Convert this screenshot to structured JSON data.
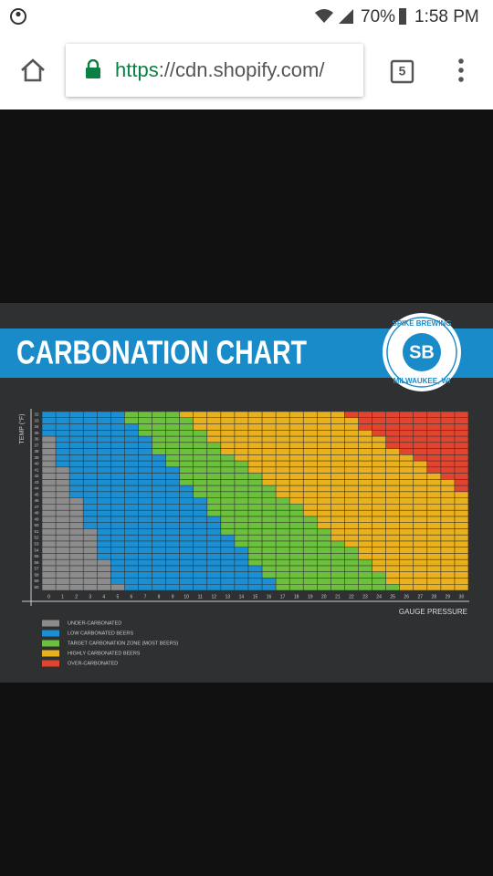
{
  "status_bar": {
    "battery": "70%",
    "time": "1:58 PM"
  },
  "browser": {
    "url_scheme": "https",
    "url_rest": "://cdn.shopify.com/",
    "tab_count": "5"
  },
  "chart_data": {
    "type": "heatmap",
    "title": "CARBONATION CHART",
    "logo": {
      "name": "SPIKE BREWING",
      "initials": "SB",
      "location": "MILWAUKEE, WI"
    },
    "y_label": "TEMP (°F)",
    "x_label": "GAUGE PRESSURE",
    "rows": [
      32,
      33,
      34,
      35,
      36,
      37,
      38,
      39,
      40,
      41,
      42,
      43,
      44,
      45,
      46,
      47,
      48,
      49,
      50,
      51,
      52,
      53,
      54,
      55,
      56,
      57,
      58,
      59,
      60
    ],
    "columns": [
      0,
      1,
      2,
      3,
      4,
      5,
      6,
      7,
      8,
      9,
      10,
      11,
      12,
      13,
      14,
      15,
      16,
      17,
      18,
      19,
      20,
      21,
      22,
      23,
      24,
      25,
      26,
      27,
      28,
      29,
      30
    ],
    "zones": [
      {
        "name": "UNDER-CARBONATED",
        "color": "#8c8c8c"
      },
      {
        "name": "LOW CARBONATED BEERS",
        "color": "#1b8fd2"
      },
      {
        "name": "TARGET CARBONATION ZONE (MOST BEERS)",
        "color": "#6dbf3e"
      },
      {
        "name": "HIGHLY CARBONATED BEERS",
        "color": "#e9b11d"
      },
      {
        "name": "OVER-CARBONATED",
        "color": "#e2452f"
      }
    ],
    "zone_counts": [
      [
        0,
        6,
        4,
        12,
        9
      ],
      [
        0,
        6,
        5,
        12,
        8
      ],
      [
        0,
        7,
        4,
        12,
        8
      ],
      [
        0,
        7,
        5,
        12,
        7
      ],
      [
        1,
        7,
        4,
        13,
        6
      ],
      [
        1,
        7,
        5,
        12,
        6
      ],
      [
        1,
        7,
        5,
        13,
        5
      ],
      [
        1,
        8,
        5,
        13,
        4
      ],
      [
        1,
        8,
        6,
        13,
        3
      ],
      [
        2,
        8,
        5,
        13,
        3
      ],
      [
        2,
        8,
        6,
        13,
        2
      ],
      [
        2,
        8,
        6,
        14,
        1
      ],
      [
        2,
        9,
        6,
        13,
        1
      ],
      [
        2,
        9,
        6,
        14,
        0
      ],
      [
        3,
        9,
        6,
        13,
        0
      ],
      [
        3,
        9,
        7,
        12,
        0
      ],
      [
        3,
        9,
        7,
        12,
        0
      ],
      [
        3,
        10,
        7,
        11,
        0
      ],
      [
        3,
        10,
        7,
        11,
        0
      ],
      [
        4,
        9,
        8,
        10,
        0
      ],
      [
        4,
        10,
        7,
        10,
        0
      ],
      [
        4,
        10,
        8,
        9,
        0
      ],
      [
        4,
        11,
        8,
        8,
        0
      ],
      [
        4,
        11,
        8,
        8,
        0
      ],
      [
        5,
        10,
        9,
        7,
        0
      ],
      [
        5,
        11,
        8,
        7,
        0
      ],
      [
        5,
        11,
        9,
        6,
        0
      ],
      [
        5,
        12,
        8,
        6,
        0
      ],
      [
        6,
        11,
        9,
        5,
        0
      ]
    ]
  }
}
